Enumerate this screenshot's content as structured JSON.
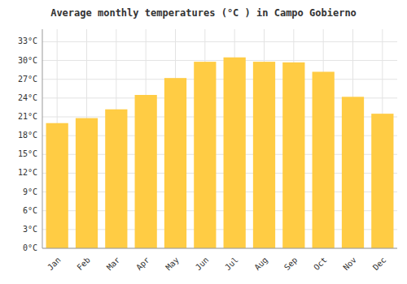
{
  "chart_data": {
    "type": "bar",
    "title": "Average monthly temperatures (°C ) in Campo Gobierno",
    "categories": [
      "Jan",
      "Feb",
      "Mar",
      "Apr",
      "May",
      "Jun",
      "Jul",
      "Aug",
      "Sep",
      "Oct",
      "Nov",
      "Dec"
    ],
    "values": [
      20.0,
      20.8,
      22.2,
      24.5,
      27.2,
      29.8,
      30.5,
      29.8,
      29.7,
      28.2,
      24.2,
      21.5
    ],
    "color": "#FFCC44",
    "ylim": [
      0,
      35
    ],
    "yticks": [
      {
        "value": 0,
        "label": "0°C"
      },
      {
        "value": 3,
        "label": "3°C"
      },
      {
        "value": 6,
        "label": "6°C"
      },
      {
        "value": 9,
        "label": "9°C"
      },
      {
        "value": 12,
        "label": "12°C"
      },
      {
        "value": 15,
        "label": "15°C"
      },
      {
        "value": 18,
        "label": "18°C"
      },
      {
        "value": 21,
        "label": "21°C"
      },
      {
        "value": 24,
        "label": "24°C"
      },
      {
        "value": 27,
        "label": "27°C"
      },
      {
        "value": 30,
        "label": "30°C"
      },
      {
        "value": 33,
        "label": "33°C"
      }
    ],
    "grid": true
  }
}
